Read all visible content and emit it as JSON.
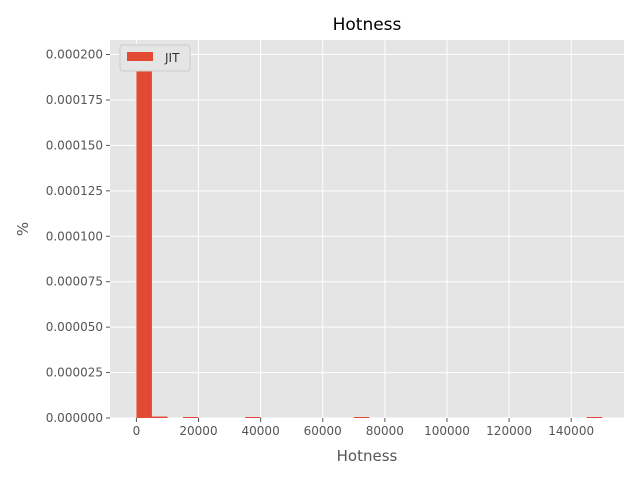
{
  "chart_data": {
    "type": "bar",
    "title": "Hotness",
    "xlabel": "Hotness",
    "ylabel": "%",
    "xlim": [
      -8500,
      157000
    ],
    "ylim": [
      0,
      0.000208
    ],
    "xticks": [
      0,
      20000,
      40000,
      60000,
      80000,
      100000,
      120000,
      140000
    ],
    "xtick_labels": [
      "0",
      "20000",
      "40000",
      "60000",
      "80000",
      "100000",
      "120000",
      "140000"
    ],
    "yticks": [
      0,
      2.5e-05,
      5e-05,
      7.5e-05,
      0.0001,
      0.000125,
      0.00015,
      0.000175,
      0.0002
    ],
    "ytick_labels": [
      "0.000000",
      "0.000025",
      "0.000050",
      "0.000075",
      "0.000100",
      "0.000125",
      "0.000150",
      "0.000175",
      "0.000200"
    ],
    "grid": true,
    "legend_position": "top-left",
    "bin_width": 5000,
    "series": [
      {
        "name": "JIT",
        "color": "#E24A33",
        "bins": [
          {
            "x0": 0,
            "x1": 5000,
            "value": 0.000195
          },
          {
            "x0": 5000,
            "x1": 10000,
            "value": 8e-07
          },
          {
            "x0": 15000,
            "x1": 20000,
            "value": 2e-07
          },
          {
            "x0": 35000,
            "x1": 40000,
            "value": 2e-07
          },
          {
            "x0": 70000,
            "x1": 75000,
            "value": 2e-07
          },
          {
            "x0": 145000,
            "x1": 150000,
            "value": 2e-07
          }
        ]
      }
    ]
  }
}
